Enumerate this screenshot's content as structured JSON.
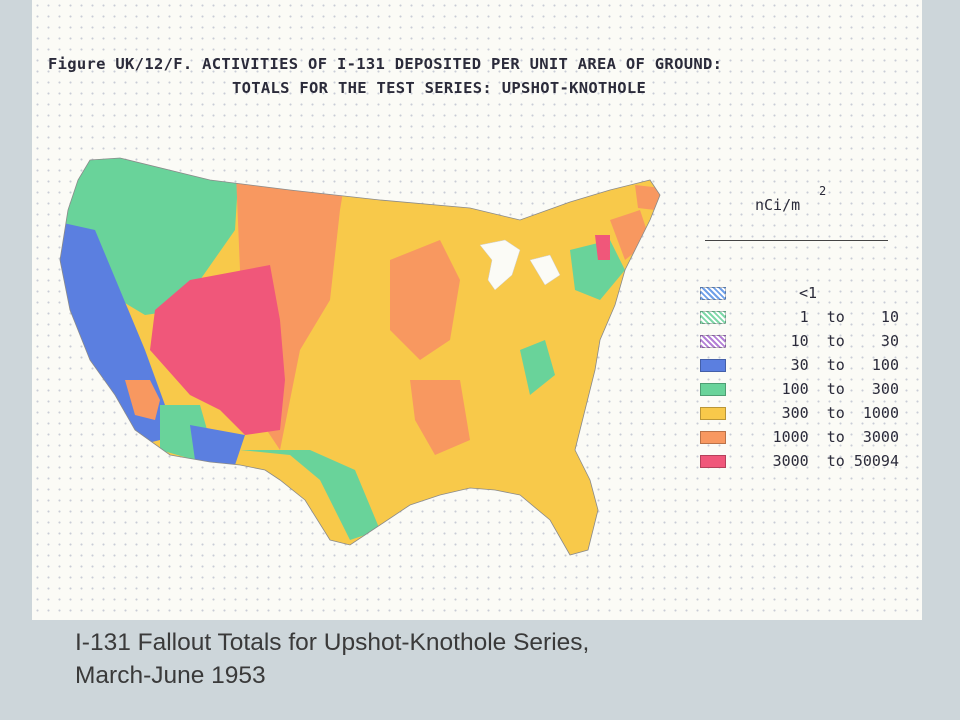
{
  "figure": {
    "title_line1": "Figure UK/12/F. ACTIVITIES OF I-131 DEPOSITED PER UNIT AREA OF GROUND:",
    "title_line2": "TOTALS FOR THE TEST SERIES: UPSHOT-KNOTHOLE"
  },
  "legend": {
    "unit": "nCi/m",
    "unit_exponent": "2",
    "items": [
      {
        "label": "<1",
        "color": "#5b7fe0",
        "pattern": "hatch"
      },
      {
        "label": "1  to    10",
        "color": "#69d39a",
        "pattern": "hatch"
      },
      {
        "label": "10  to    30",
        "color": "#a76bd0",
        "pattern": "hatch"
      },
      {
        "label": "30  to   100",
        "color": "#5b7fe0",
        "pattern": "solid"
      },
      {
        "label": "100  to   300",
        "color": "#69d39a",
        "pattern": "solid"
      },
      {
        "label": "300  to  1000",
        "color": "#f8c94a",
        "pattern": "solid"
      },
      {
        "label": "1000  to  3000",
        "color": "#f89860",
        "pattern": "solid"
      },
      {
        "label": "3000  to 50094",
        "color": "#f0577a",
        "pattern": "solid"
      }
    ]
  },
  "caption": {
    "line1": "I-131 Fallout Totals for Upshot-Knothole Series,",
    "line2": "March-June 1953"
  }
}
